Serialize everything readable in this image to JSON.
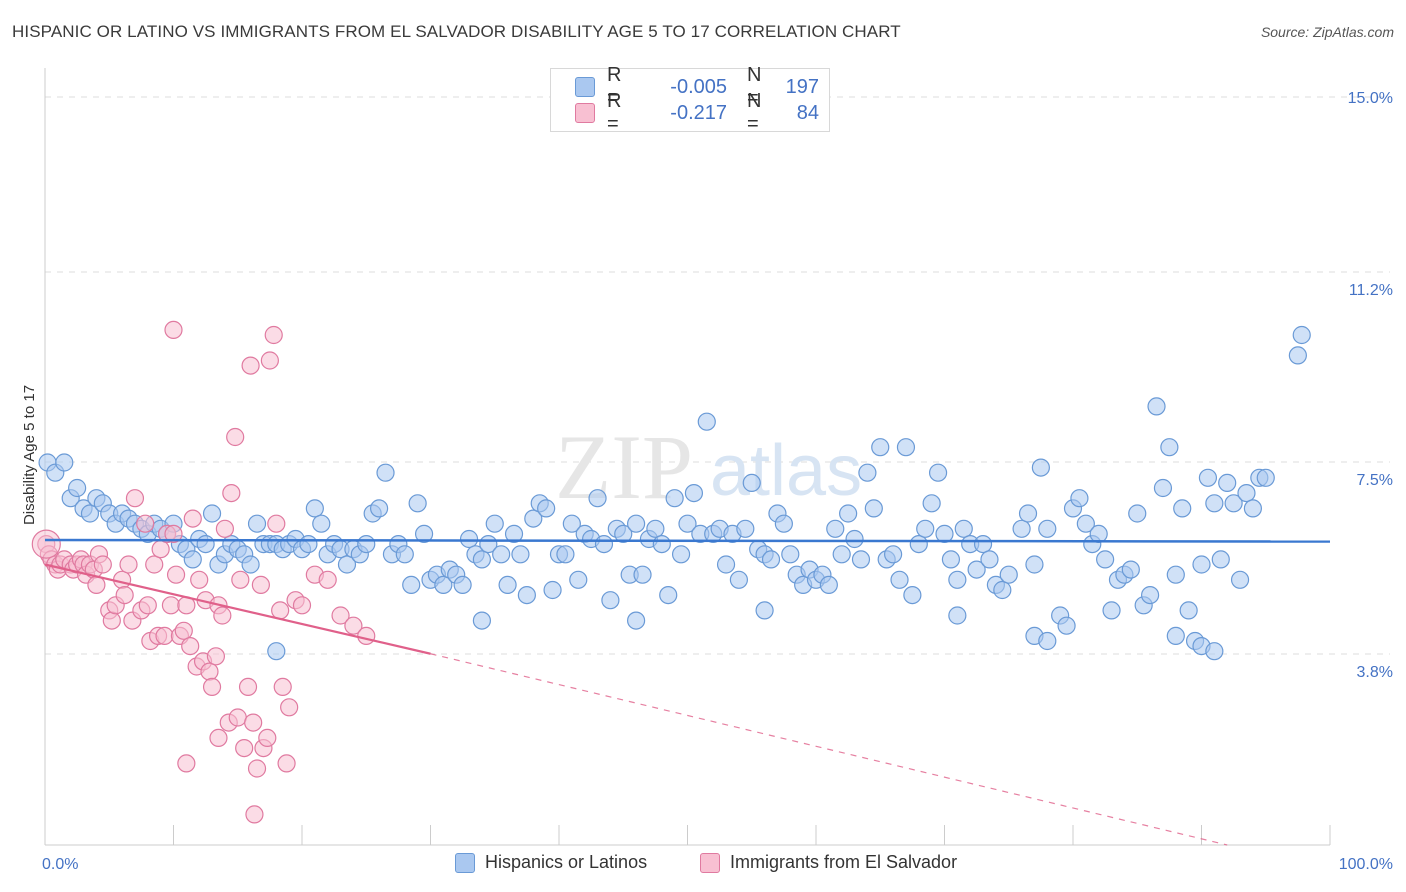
{
  "title": "HISPANIC OR LATINO VS IMMIGRANTS FROM EL SALVADOR DISABILITY AGE 5 TO 17 CORRELATION CHART",
  "source": "Source: ZipAtlas.com",
  "watermark": {
    "zip": "ZIP",
    "atlas": "atlas"
  },
  "legend": {
    "rows": [
      {
        "r_label": "R =",
        "r_value": "-0.005",
        "n_label": "N =",
        "n_value": "197",
        "color": "#aac8f0",
        "border": "#6a9ad6"
      },
      {
        "r_label": "R =",
        "r_value": "-0.217",
        "n_label": "N =",
        "n_value": "84",
        "color": "#f8c0d2",
        "border": "#e07aa0"
      }
    ]
  },
  "bottom_legend": [
    {
      "label": "Hispanics or Latinos",
      "color": "#aac8f0",
      "border": "#6a9ad6"
    },
    {
      "label": "Immigrants from El Salvador",
      "color": "#f8c0d2",
      "border": "#e07aa0"
    }
  ],
  "chart_data": {
    "type": "scatter",
    "title": "HISPANIC OR LATINO VS IMMIGRANTS FROM EL SALVADOR DISABILITY AGE 5 TO 17 CORRELATION CHART",
    "xlabel": "",
    "ylabel": "Disability Age 5 to 17",
    "xlim": [
      0,
      100
    ],
    "ylim": [
      0,
      15
    ],
    "x_tick_labels": [
      "0.0%",
      "100.0%"
    ],
    "y_ticks": [
      3.8,
      7.5,
      11.2,
      15.0
    ],
    "y_tick_labels": [
      "3.8%",
      "7.5%",
      "11.2%",
      "15.0%"
    ],
    "series": [
      {
        "name": "Hispanics or Latinos",
        "color": "#6a9ad6",
        "fill": "#aac8f0",
        "trend": {
          "x": [
            0,
            100
          ],
          "y": [
            5.98,
            5.95
          ],
          "style": "solid",
          "color": "#3a78d0"
        },
        "points": [
          [
            0.2,
            7.5
          ],
          [
            0.8,
            7.3
          ],
          [
            1.5,
            7.5
          ],
          [
            2,
            6.8
          ],
          [
            2.5,
            7
          ],
          [
            3,
            6.6
          ],
          [
            3.5,
            6.5
          ],
          [
            4,
            6.8
          ],
          [
            4.5,
            6.7
          ],
          [
            5,
            6.5
          ],
          [
            5.5,
            6.3
          ],
          [
            6,
            6.5
          ],
          [
            6.5,
            6.4
          ],
          [
            7,
            6.3
          ],
          [
            7.5,
            6.2
          ],
          [
            8,
            6.1
          ],
          [
            8.5,
            6.3
          ],
          [
            9,
            6.2
          ],
          [
            9.5,
            6.1
          ],
          [
            10,
            6.3
          ],
          [
            10.5,
            5.9
          ],
          [
            11,
            5.8
          ],
          [
            11.5,
            5.6
          ],
          [
            12,
            6
          ],
          [
            12.5,
            5.9
          ],
          [
            13,
            6.5
          ],
          [
            13.5,
            5.5
          ],
          [
            14,
            5.7
          ],
          [
            14.5,
            5.9
          ],
          [
            15,
            5.8
          ],
          [
            15.5,
            5.7
          ],
          [
            16,
            5.5
          ],
          [
            16.5,
            6.3
          ],
          [
            17,
            5.9
          ],
          [
            17.5,
            5.9
          ],
          [
            18,
            5.9
          ],
          [
            18.5,
            5.8
          ],
          [
            19,
            5.9
          ],
          [
            19.5,
            6
          ],
          [
            20,
            5.8
          ],
          [
            20.5,
            5.9
          ],
          [
            21,
            6.6
          ],
          [
            21.5,
            6.3
          ],
          [
            22,
            5.7
          ],
          [
            22.5,
            5.9
          ],
          [
            23,
            5.8
          ],
          [
            23.5,
            5.5
          ],
          [
            24,
            5.8
          ],
          [
            24.5,
            5.7
          ],
          [
            25,
            5.9
          ],
          [
            25.5,
            6.5
          ],
          [
            26,
            6.6
          ],
          [
            26.5,
            7.3
          ],
          [
            27,
            5.7
          ],
          [
            27.5,
            5.9
          ],
          [
            28,
            5.7
          ],
          [
            28.5,
            5.1
          ],
          [
            29,
            6.7
          ],
          [
            29.5,
            6.1
          ],
          [
            30,
            5.2
          ],
          [
            30.5,
            5.3
          ],
          [
            31,
            5.1
          ],
          [
            31.5,
            5.4
          ],
          [
            32,
            5.3
          ],
          [
            32.5,
            5.1
          ],
          [
            33,
            6
          ],
          [
            33.5,
            5.7
          ],
          [
            34,
            5.6
          ],
          [
            34.5,
            5.9
          ],
          [
            35,
            6.3
          ],
          [
            35.5,
            5.7
          ],
          [
            36,
            5.1
          ],
          [
            36.5,
            6.1
          ],
          [
            37,
            5.7
          ],
          [
            37.5,
            4.9
          ],
          [
            38,
            6.4
          ],
          [
            38.5,
            6.7
          ],
          [
            39,
            6.6
          ],
          [
            39.5,
            5.0
          ],
          [
            40,
            5.7
          ],
          [
            40.5,
            5.7
          ],
          [
            41,
            6.3
          ],
          [
            41.5,
            5.2
          ],
          [
            42,
            6.1
          ],
          [
            42.5,
            6
          ],
          [
            43,
            6.8
          ],
          [
            43.5,
            5.9
          ],
          [
            44,
            4.8
          ],
          [
            44.5,
            6.2
          ],
          [
            45,
            6.1
          ],
          [
            45.5,
            5.3
          ],
          [
            46,
            6.3
          ],
          [
            46.5,
            5.3
          ],
          [
            47,
            6
          ],
          [
            47.5,
            6.2
          ],
          [
            48,
            5.9
          ],
          [
            48.5,
            4.9
          ],
          [
            49,
            6.8
          ],
          [
            49.5,
            5.7
          ],
          [
            50,
            6.3
          ],
          [
            50.5,
            6.9
          ],
          [
            51,
            6.1
          ],
          [
            51.5,
            8.3
          ],
          [
            52,
            6.1
          ],
          [
            52.5,
            6.2
          ],
          [
            53,
            5.5
          ],
          [
            53.5,
            6.1
          ],
          [
            54,
            5.2
          ],
          [
            54.5,
            6.2
          ],
          [
            55,
            7.1
          ],
          [
            55.5,
            5.8
          ],
          [
            56,
            5.7
          ],
          [
            56.5,
            5.6
          ],
          [
            57,
            6.5
          ],
          [
            57.5,
            6.3
          ],
          [
            58,
            5.7
          ],
          [
            58.5,
            5.3
          ],
          [
            59,
            5.1
          ],
          [
            59.5,
            5.4
          ],
          [
            60,
            5.2
          ],
          [
            60.5,
            5.3
          ],
          [
            61,
            5.1
          ],
          [
            61.5,
            6.2
          ],
          [
            62,
            5.7
          ],
          [
            62.5,
            6.5
          ],
          [
            63,
            6
          ],
          [
            63.5,
            5.6
          ],
          [
            64,
            7.3
          ],
          [
            64.5,
            6.6
          ],
          [
            65,
            7.8
          ],
          [
            65.5,
            5.6
          ],
          [
            66,
            5.7
          ],
          [
            66.5,
            5.2
          ],
          [
            67,
            7.8
          ],
          [
            67.5,
            4.9
          ],
          [
            68,
            5.9
          ],
          [
            68.5,
            6.2
          ],
          [
            69,
            6.7
          ],
          [
            69.5,
            7.3
          ],
          [
            70,
            6.1
          ],
          [
            70.5,
            5.6
          ],
          [
            71,
            5.2
          ],
          [
            71.5,
            6.2
          ],
          [
            72,
            5.9
          ],
          [
            72.5,
            5.4
          ],
          [
            73,
            5.9
          ],
          [
            73.5,
            5.6
          ],
          [
            74,
            5.1
          ],
          [
            74.5,
            5.0
          ],
          [
            75,
            5.3
          ],
          [
            76,
            6.2
          ],
          [
            76.5,
            6.5
          ],
          [
            77,
            5.5
          ],
          [
            77.5,
            7.4
          ],
          [
            78,
            6.2
          ],
          [
            79,
            4.5
          ],
          [
            79.5,
            4.3
          ],
          [
            80,
            6.6
          ],
          [
            80.5,
            6.8
          ],
          [
            81,
            6.3
          ],
          [
            81.5,
            5.9
          ],
          [
            82,
            6.1
          ],
          [
            82.5,
            5.6
          ],
          [
            83,
            4.6
          ],
          [
            83.5,
            5.2
          ],
          [
            84,
            5.3
          ],
          [
            84.5,
            5.4
          ],
          [
            85,
            6.5
          ],
          [
            85.5,
            4.7
          ],
          [
            86,
            4.9
          ],
          [
            86.5,
            8.6
          ],
          [
            87,
            7
          ],
          [
            87.5,
            7.8
          ],
          [
            88,
            5.3
          ],
          [
            88.5,
            6.6
          ],
          [
            89,
            4.6
          ],
          [
            89.5,
            4
          ],
          [
            90,
            5.5
          ],
          [
            90.5,
            7.2
          ],
          [
            91,
            6.7
          ],
          [
            91.5,
            5.6
          ],
          [
            92,
            7.1
          ],
          [
            92.5,
            6.7
          ],
          [
            93,
            5.2
          ],
          [
            93.5,
            6.9
          ],
          [
            94,
            6.6
          ],
          [
            94.5,
            7.2
          ],
          [
            95,
            7.2
          ],
          [
            97.5,
            9.6
          ],
          [
            97.8,
            10
          ],
          [
            18,
            3.8
          ],
          [
            34,
            4.4
          ],
          [
            46,
            4.4
          ],
          [
            56,
            4.6
          ],
          [
            71,
            4.5
          ],
          [
            77,
            4.1
          ],
          [
            78,
            4.0
          ],
          [
            88,
            4.1
          ],
          [
            90,
            3.9
          ],
          [
            91,
            3.8
          ]
        ]
      },
      {
        "name": "Immigrants from El Salvador",
        "color": "#e07aa0",
        "fill": "#f8c0d2",
        "trend": {
          "x": [
            0,
            30
          ],
          "y": [
            5.5,
            3.75
          ],
          "style": "solid",
          "color": "#e0608a",
          "dashed_extension": {
            "x": [
              30,
              100
            ],
            "y": [
              3.75,
              -0.6
            ]
          }
        },
        "points": [
          [
            0.1,
            5.9
          ],
          [
            0.3,
            5.7
          ],
          [
            0.5,
            5.6
          ],
          [
            0.8,
            5.5
          ],
          [
            1,
            5.4
          ],
          [
            1.2,
            5.5
          ],
          [
            1.5,
            5.6
          ],
          [
            2,
            5.5
          ],
          [
            2.2,
            5.4
          ],
          [
            2.5,
            5.5
          ],
          [
            2.8,
            5.6
          ],
          [
            3,
            5.5
          ],
          [
            3.2,
            5.3
          ],
          [
            3.5,
            5.5
          ],
          [
            3.8,
            5.4
          ],
          [
            4,
            5.1
          ],
          [
            4.2,
            5.7
          ],
          [
            4.5,
            5.5
          ],
          [
            5,
            4.6
          ],
          [
            5.2,
            4.4
          ],
          [
            5.5,
            4.7
          ],
          [
            6,
            5.2
          ],
          [
            6.2,
            4.9
          ],
          [
            6.5,
            5.5
          ],
          [
            6.8,
            4.4
          ],
          [
            7,
            6.8
          ],
          [
            7.5,
            4.6
          ],
          [
            7.8,
            6.3
          ],
          [
            8,
            4.7
          ],
          [
            8.2,
            4
          ],
          [
            8.5,
            5.5
          ],
          [
            8.8,
            4.1
          ],
          [
            9,
            5.8
          ],
          [
            9.3,
            4.1
          ],
          [
            9.5,
            6.1
          ],
          [
            9.8,
            4.7
          ],
          [
            10,
            6.1
          ],
          [
            10.2,
            5.3
          ],
          [
            10.5,
            4.1
          ],
          [
            10.8,
            4.2
          ],
          [
            11,
            4.7
          ],
          [
            11.3,
            3.9
          ],
          [
            11.5,
            6.4
          ],
          [
            11.8,
            3.5
          ],
          [
            12,
            5.2
          ],
          [
            12.3,
            3.6
          ],
          [
            12.5,
            4.8
          ],
          [
            12.8,
            3.4
          ],
          [
            13,
            3.1
          ],
          [
            13.3,
            3.7
          ],
          [
            13.5,
            4.7
          ],
          [
            13.8,
            4.5
          ],
          [
            14,
            6.2
          ],
          [
            14.3,
            2.4
          ],
          [
            14.5,
            6.9
          ],
          [
            14.8,
            8
          ],
          [
            15,
            2.5
          ],
          [
            15.2,
            5.2
          ],
          [
            15.5,
            1.9
          ],
          [
            15.8,
            3.1
          ],
          [
            16,
            9.4
          ],
          [
            16.2,
            2.4
          ],
          [
            16.5,
            1.5
          ],
          [
            16.8,
            5.1
          ],
          [
            17,
            1.9
          ],
          [
            17.3,
            2.1
          ],
          [
            17.5,
            9.5
          ],
          [
            17.8,
            10
          ],
          [
            18,
            6.3
          ],
          [
            18.3,
            4.6
          ],
          [
            18.5,
            3.1
          ],
          [
            18.8,
            1.6
          ],
          [
            19,
            2.7
          ],
          [
            19.5,
            4.8
          ],
          [
            20,
            4.7
          ],
          [
            21,
            5.3
          ],
          [
            22,
            5.2
          ],
          [
            23,
            4.5
          ],
          [
            24,
            4.3
          ],
          [
            25,
            4.1
          ],
          [
            10,
            10.1
          ],
          [
            13.5,
            2.1
          ],
          [
            16.3,
            0.6
          ],
          [
            11,
            1.6
          ]
        ]
      }
    ]
  }
}
